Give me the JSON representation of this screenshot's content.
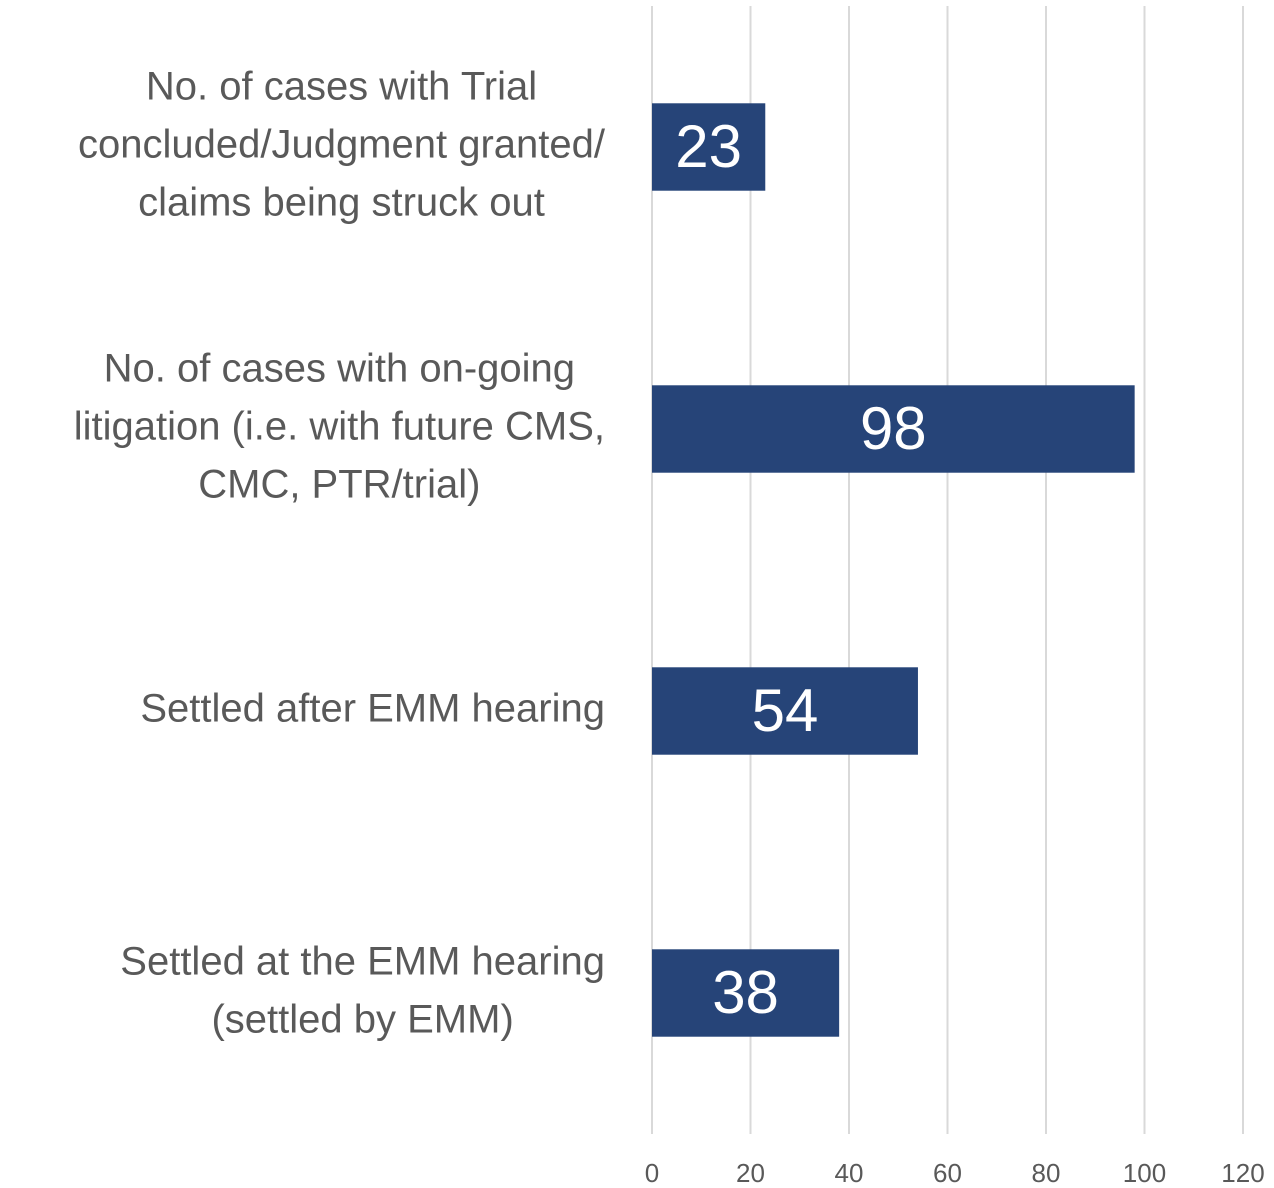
{
  "chart_data": {
    "type": "barh",
    "categories": [
      [
        "No. of cases with Trial",
        "concluded/Judgment granted/",
        "claims being struck out"
      ],
      [
        "No. of cases with on-going",
        "litigation (i.e. with future CMS,",
        "CMC, PTR/trial)"
      ],
      [
        "Settled after EMM hearing"
      ],
      [
        "Settled at the EMM hearing",
        "(settled by EMM)"
      ]
    ],
    "values": [
      23,
      98,
      54,
      38
    ],
    "color": "#264478",
    "xlim": [
      0,
      120
    ],
    "xticks": [
      0,
      20,
      40,
      60,
      80,
      100,
      120
    ],
    "grid": true
  }
}
